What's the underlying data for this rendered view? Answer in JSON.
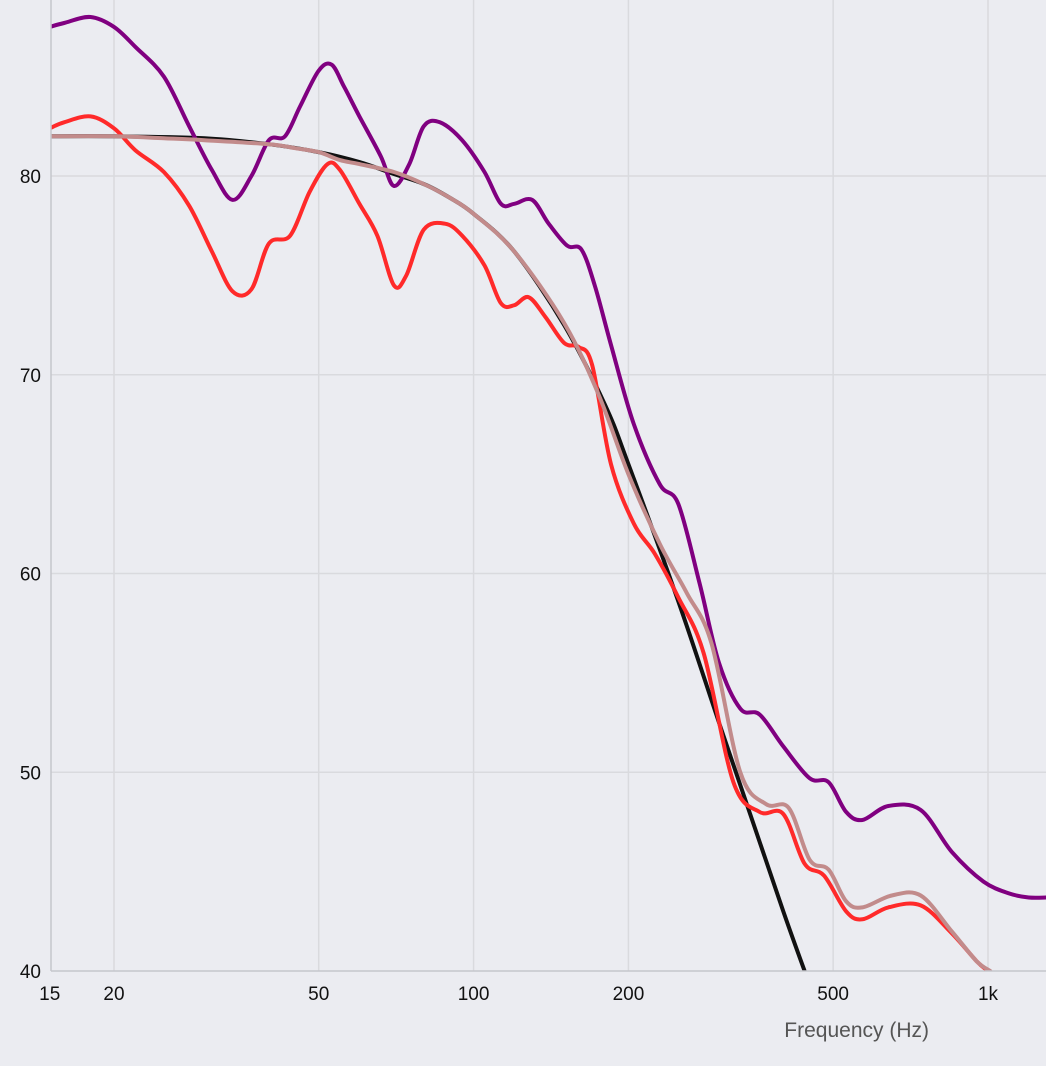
{
  "chart_data": {
    "type": "line",
    "title": "",
    "xlabel": "Frequency (Hz)",
    "ylabel": "",
    "x_scale": "log",
    "xlim": [
      15,
      1300
    ],
    "ylim": [
      40,
      89
    ],
    "grid": true,
    "x_ticks": [
      {
        "value": 15,
        "label": "15"
      },
      {
        "value": 20,
        "label": "20"
      },
      {
        "value": 50,
        "label": "50"
      },
      {
        "value": 100,
        "label": "100"
      },
      {
        "value": 200,
        "label": "200"
      },
      {
        "value": 500,
        "label": "500"
      },
      {
        "value": 1000,
        "label": "1k"
      }
    ],
    "y_ticks": [
      {
        "value": 40,
        "label": "40"
      },
      {
        "value": 50,
        "label": "50"
      },
      {
        "value": 60,
        "label": "60"
      },
      {
        "value": 70,
        "label": "70"
      },
      {
        "value": 80,
        "label": "80"
      }
    ],
    "series": [
      {
        "color": "#111111",
        "points": [
          [
            15,
            82
          ],
          [
            20,
            82
          ],
          [
            30,
            81.9
          ],
          [
            40,
            81.6
          ],
          [
            50,
            81.2
          ],
          [
            60,
            80.7
          ],
          [
            70,
            80.1
          ],
          [
            80,
            79.6
          ],
          [
            90,
            78.9
          ],
          [
            100,
            78.1
          ],
          [
            120,
            76.2
          ],
          [
            150,
            72.5
          ],
          [
            180,
            68.5
          ],
          [
            200,
            65.5
          ],
          [
            250,
            58.6
          ],
          [
            300,
            52.5
          ],
          [
            350,
            47.4
          ],
          [
            400,
            43.0
          ],
          [
            440,
            40.0
          ]
        ]
      },
      {
        "color": "#800080",
        "points": [
          [
            15,
            87.5
          ],
          [
            16,
            87.7
          ],
          [
            18,
            88.0
          ],
          [
            20,
            87.5
          ],
          [
            22,
            86.5
          ],
          [
            25,
            85.0
          ],
          [
            28,
            82.5
          ],
          [
            31,
            80.3
          ],
          [
            34,
            78.8
          ],
          [
            37,
            80.0
          ],
          [
            40,
            81.8
          ],
          [
            43,
            82.0
          ],
          [
            46,
            83.5
          ],
          [
            50,
            85.3
          ],
          [
            53,
            85.6
          ],
          [
            56,
            84.5
          ],
          [
            60,
            83.0
          ],
          [
            66,
            81.0
          ],
          [
            70,
            79.5
          ],
          [
            75,
            80.6
          ],
          [
            80,
            82.5
          ],
          [
            86,
            82.7
          ],
          [
            95,
            81.8
          ],
          [
            105,
            80.2
          ],
          [
            113,
            78.6
          ],
          [
            120,
            78.6
          ],
          [
            130,
            78.8
          ],
          [
            140,
            77.6
          ],
          [
            152,
            76.5
          ],
          [
            162,
            76.3
          ],
          [
            172,
            74.5
          ],
          [
            185,
            71.5
          ],
          [
            205,
            67.5
          ],
          [
            230,
            64.5
          ],
          [
            250,
            63.5
          ],
          [
            275,
            59.5
          ],
          [
            300,
            55.5
          ],
          [
            330,
            53.2
          ],
          [
            360,
            52.9
          ],
          [
            400,
            51.3
          ],
          [
            450,
            49.7
          ],
          [
            490,
            49.5
          ],
          [
            530,
            48.0
          ],
          [
            570,
            47.6
          ],
          [
            640,
            48.3
          ],
          [
            740,
            48.1
          ],
          [
            850,
            46.0
          ],
          [
            980,
            44.5
          ],
          [
            1100,
            43.9
          ],
          [
            1200,
            43.7
          ],
          [
            1300,
            43.7
          ]
        ]
      },
      {
        "color": "#ff2a2a",
        "points": [
          [
            15,
            82.4
          ],
          [
            16,
            82.7
          ],
          [
            18,
            83.0
          ],
          [
            20,
            82.4
          ],
          [
            22,
            81.3
          ],
          [
            25,
            80.2
          ],
          [
            28,
            78.5
          ],
          [
            31,
            76.2
          ],
          [
            34,
            74.2
          ],
          [
            37,
            74.3
          ],
          [
            40,
            76.6
          ],
          [
            44,
            77.0
          ],
          [
            48,
            79.2
          ],
          [
            52,
            80.6
          ],
          [
            55,
            80.3
          ],
          [
            60,
            78.6
          ],
          [
            65,
            77.0
          ],
          [
            70,
            74.5
          ],
          [
            74,
            75.0
          ],
          [
            80,
            77.3
          ],
          [
            88,
            77.6
          ],
          [
            95,
            77.0
          ],
          [
            105,
            75.5
          ],
          [
            113,
            73.6
          ],
          [
            120,
            73.5
          ],
          [
            128,
            73.9
          ],
          [
            138,
            72.9
          ],
          [
            150,
            71.6
          ],
          [
            160,
            71.4
          ],
          [
            170,
            70.5
          ],
          [
            185,
            65.5
          ],
          [
            205,
            62.5
          ],
          [
            225,
            61.0
          ],
          [
            250,
            58.8
          ],
          [
            280,
            56.0
          ],
          [
            320,
            49.5
          ],
          [
            360,
            48.0
          ],
          [
            400,
            47.9
          ],
          [
            440,
            45.4
          ],
          [
            480,
            44.8
          ],
          [
            530,
            43.0
          ],
          [
            570,
            42.6
          ],
          [
            640,
            43.2
          ],
          [
            740,
            43.3
          ],
          [
            850,
            41.9
          ],
          [
            950,
            40.5
          ],
          [
            1000,
            40.0
          ]
        ]
      },
      {
        "color": "#c28b8b",
        "points": [
          [
            15,
            82.0
          ],
          [
            20,
            82.0
          ],
          [
            25,
            81.9
          ],
          [
            30,
            81.8
          ],
          [
            40,
            81.6
          ],
          [
            45,
            81.4
          ],
          [
            50,
            81.2
          ],
          [
            55,
            80.8
          ],
          [
            60,
            80.6
          ],
          [
            70,
            80.2
          ],
          [
            80,
            79.6
          ],
          [
            90,
            78.9
          ],
          [
            100,
            78.1
          ],
          [
            120,
            76.2
          ],
          [
            150,
            72.6
          ],
          [
            175,
            69.0
          ],
          [
            200,
            65.0
          ],
          [
            230,
            61.5
          ],
          [
            260,
            59.0
          ],
          [
            290,
            56.5
          ],
          [
            330,
            50.0
          ],
          [
            370,
            48.4
          ],
          [
            410,
            48.2
          ],
          [
            450,
            45.6
          ],
          [
            490,
            45.1
          ],
          [
            530,
            43.5
          ],
          [
            570,
            43.2
          ],
          [
            650,
            43.8
          ],
          [
            740,
            43.8
          ],
          [
            850,
            42.0
          ],
          [
            950,
            40.5
          ],
          [
            1010,
            40.0
          ]
        ]
      }
    ]
  }
}
